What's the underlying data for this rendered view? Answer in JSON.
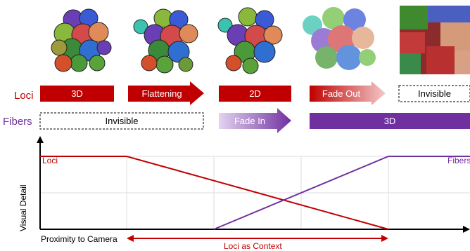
{
  "rows": {
    "loci_label": "Loci",
    "fibers_label": "Fibers",
    "loci_color": "#c00000",
    "fibers_color": "#7030a0"
  },
  "stages": {
    "loci": [
      "3D",
      "Flattening",
      "2D",
      "Fade Out",
      "Invisible"
    ],
    "fibers": [
      "Invisible",
      "Fade In",
      "3D"
    ]
  },
  "plot": {
    "ylabel": "Visual Detail",
    "xlabel": "Proximity to Camera",
    "context_label": "Loci as Context",
    "loci_line_label": "Loci",
    "fibers_line_label": "Fibers"
  },
  "thumbnails": [
    {
      "name": "loci-3d-render",
      "style": "blobs"
    },
    {
      "name": "loci-flattening-render",
      "style": "blobs-flat"
    },
    {
      "name": "loci-2d-render",
      "style": "blobs-2d"
    },
    {
      "name": "loci-fading-render",
      "style": "fuzzy"
    },
    {
      "name": "fibers-render",
      "style": "fibers"
    }
  ]
}
